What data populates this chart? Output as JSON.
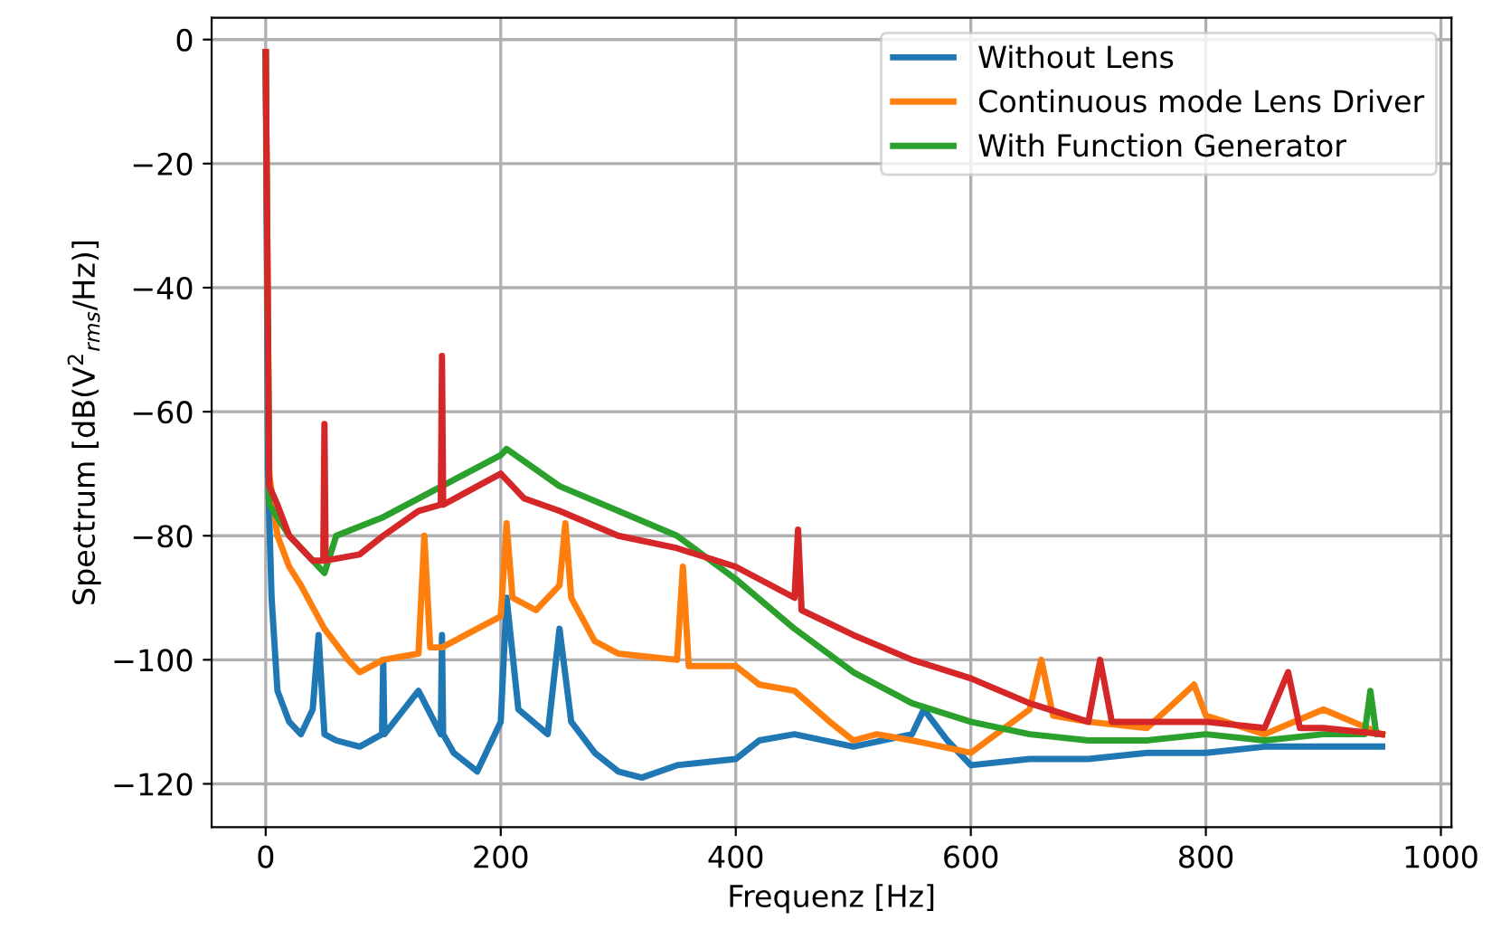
{
  "chart_data": {
    "type": "line",
    "xlabel": "Frequenz [Hz]",
    "ylabel": "Spectrum [dB(V$^{2}$$_{rms}$/Hz)]",
    "xlim": [
      -46,
      1009
    ],
    "ylim": [
      -127,
      3.5
    ],
    "xticks": [
      0,
      200,
      400,
      600,
      800,
      1000
    ],
    "yticks": [
      -120,
      -100,
      -80,
      -60,
      -40,
      -20,
      0
    ],
    "grid": true,
    "legend": "top right",
    "line_style": "solid",
    "marker": "none",
    "series": [
      {
        "name": "Without Lens",
        "color": "#1f77b4",
        "x": [
          0,
          2,
          5,
          10,
          20,
          30,
          40,
          45,
          50,
          60,
          80,
          99,
          100,
          101,
          130,
          149,
          150,
          151,
          160,
          180,
          200,
          205,
          215,
          240,
          250,
          260,
          280,
          300,
          320,
          350,
          400,
          420,
          450,
          500,
          550,
          560,
          580,
          600,
          650,
          700,
          750,
          800,
          850,
          900,
          950
        ],
        "values": [
          -2,
          -70,
          -90,
          -105,
          -110,
          -112,
          -108,
          -96,
          -112,
          -113,
          -114,
          -112,
          -100,
          -112,
          -105,
          -112,
          -96,
          -112,
          -115,
          -118,
          -110,
          -90,
          -108,
          -112,
          -95,
          -110,
          -115,
          -118,
          -119,
          -117,
          -116,
          -113,
          -112,
          -114,
          -112,
          -108,
          -113,
          -117,
          -116,
          -116,
          -115,
          -115,
          -114,
          -114,
          -114
        ]
      },
      {
        "name": "Continuous mode Lens Driver",
        "color": "#ff7f0e",
        "x": [
          0,
          3,
          10,
          20,
          30,
          50,
          70,
          80,
          100,
          130,
          135,
          140,
          150,
          170,
          200,
          205,
          210,
          230,
          250,
          255,
          260,
          280,
          300,
          350,
          355,
          360,
          400,
          420,
          450,
          480,
          500,
          520,
          550,
          600,
          650,
          660,
          670,
          700,
          750,
          790,
          800,
          850,
          900,
          950
        ],
        "values": [
          -2,
          -70,
          -80,
          -85,
          -88,
          -95,
          -100,
          -102,
          -100,
          -99,
          -80,
          -98,
          -98,
          -96,
          -93,
          -78,
          -90,
          -92,
          -88,
          -78,
          -90,
          -97,
          -99,
          -100,
          -85,
          -101,
          -101,
          -104,
          -105,
          -110,
          -113,
          -112,
          -113,
          -115,
          -108,
          -100,
          -109,
          -110,
          -111,
          -104,
          -109,
          -112,
          -108,
          -112
        ]
      },
      {
        "name": "With Function Generator",
        "color": "#2ca02c",
        "x": [
          0,
          3,
          20,
          40,
          50,
          60,
          100,
          150,
          200,
          205,
          250,
          300,
          350,
          400,
          450,
          500,
          550,
          600,
          650,
          700,
          750,
          800,
          850,
          900,
          935,
          940,
          945,
          950
        ],
        "values": [
          -2,
          -75,
          -80,
          -84,
          -86,
          -80,
          -77,
          -72,
          -67,
          -66,
          -72,
          -76,
          -80,
          -87,
          -95,
          -102,
          -107,
          -110,
          -112,
          -113,
          -113,
          -112,
          -113,
          -112,
          -112,
          -105,
          -112,
          -112
        ]
      },
      {
        "color": "#d62728",
        "x": [
          0,
          3,
          10,
          20,
          30,
          40,
          49,
          50,
          51,
          80,
          100,
          130,
          149,
          150,
          151,
          200,
          220,
          250,
          300,
          350,
          400,
          450,
          453,
          456,
          500,
          550,
          600,
          650,
          700,
          710,
          720,
          750,
          800,
          850,
          870,
          880,
          900,
          950
        ],
        "values": [
          -2,
          -72,
          -75,
          -80,
          -82,
          -84,
          -84,
          -62,
          -84,
          -83,
          -80,
          -76,
          -75,
          -51,
          -75,
          -70,
          -74,
          -76,
          -80,
          -82,
          -85,
          -90,
          -79,
          -92,
          -96,
          -100,
          -103,
          -107,
          -110,
          -100,
          -110,
          -110,
          -110,
          -111,
          -102,
          -111,
          -111,
          -112
        ]
      }
    ]
  }
}
